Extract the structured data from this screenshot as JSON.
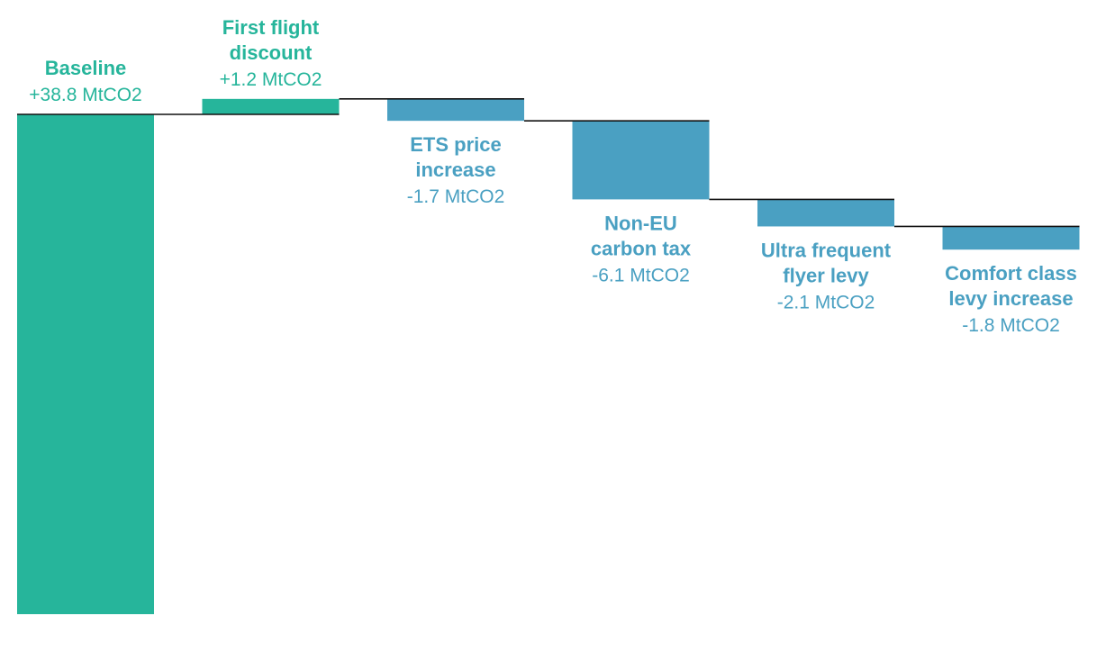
{
  "chart_data": {
    "type": "waterfall",
    "colors": {
      "increase": "#26b59b",
      "decrease": "#4aa0c2",
      "connector": "#111111"
    },
    "categories": [
      {
        "label_lines": [
          "Baseline"
        ],
        "value_label": "+38.8 MtCO2",
        "value": 38.8,
        "kind": "total"
      },
      {
        "label_lines": [
          "First flight",
          "discount"
        ],
        "value_label": "+1.2 MtCO2",
        "value": 1.2,
        "kind": "increase"
      },
      {
        "label_lines": [
          "ETS price",
          "increase"
        ],
        "value_label": "-1.7 MtCO2",
        "value": -1.7,
        "kind": "decrease"
      },
      {
        "label_lines": [
          "Non-EU",
          "carbon tax"
        ],
        "value_label": "-6.1 MtCO2",
        "value": -6.1,
        "kind": "decrease"
      },
      {
        "label_lines": [
          "Ultra frequent",
          "flyer levy"
        ],
        "value_label": "-2.1 MtCO2",
        "value": -2.1,
        "kind": "decrease"
      },
      {
        "label_lines": [
          "Comfort class",
          "levy increase"
        ],
        "value_label": "-1.8 MtCO2",
        "value": -1.8,
        "kind": "decrease"
      }
    ]
  }
}
